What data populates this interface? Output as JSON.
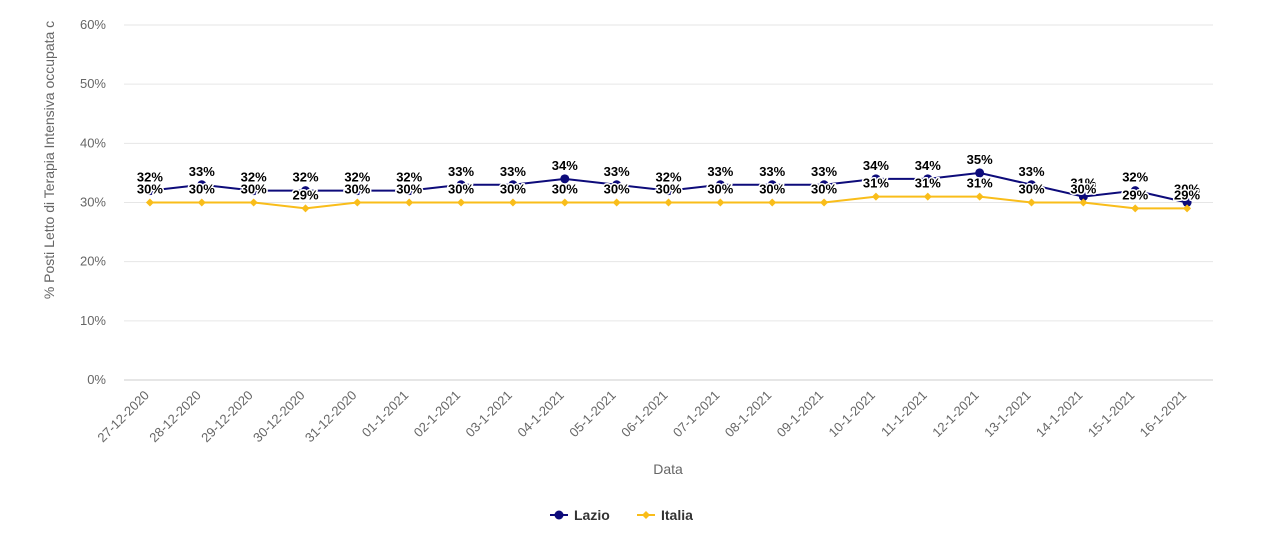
{
  "chart_data": {
    "type": "line",
    "xlabel": "Data",
    "ylabel": "% Posti Letto di Terapia Intensiva occupata c",
    "ylim": [
      0,
      60
    ],
    "yticks": [
      "0%",
      "10%",
      "20%",
      "30%",
      "40%",
      "50%",
      "60%"
    ],
    "ytick_values": [
      0,
      10,
      20,
      30,
      40,
      50,
      60
    ],
    "grid": true,
    "legend_position": "bottom-center",
    "categories": [
      "27-12-2020",
      "28-12-2020",
      "29-12-2020",
      "30-12-2020",
      "31-12-2020",
      "01-1-2021",
      "02-1-2021",
      "03-1-2021",
      "04-1-2021",
      "05-1-2021",
      "06-1-2021",
      "07-1-2021",
      "08-1-2021",
      "09-1-2021",
      "10-1-2021",
      "11-1-2021",
      "12-1-2021",
      "13-1-2021",
      "14-1-2021",
      "15-1-2021",
      "16-1-2021"
    ],
    "series": [
      {
        "name": "Lazio",
        "color": "#0d0b7a",
        "marker": "circle",
        "values": [
          32,
          33,
          32,
          32,
          32,
          32,
          33,
          33,
          34,
          33,
          32,
          33,
          33,
          33,
          34,
          34,
          35,
          33,
          31,
          32,
          30
        ],
        "labels": [
          "32%",
          "33%",
          "32%",
          "32%",
          "32%",
          "32%",
          "33%",
          "33%",
          "34%",
          "33%",
          "32%",
          "33%",
          "33%",
          "33%",
          "34%",
          "34%",
          "35%",
          "33%",
          "31%",
          "32%",
          "30%"
        ]
      },
      {
        "name": "Italia",
        "color": "#f9bd1a",
        "marker": "diamond",
        "values": [
          30,
          30,
          30,
          29,
          30,
          30,
          30,
          30,
          30,
          30,
          30,
          30,
          30,
          30,
          31,
          31,
          31,
          30,
          30,
          29,
          29
        ],
        "labels": [
          "30%",
          "30%",
          "30%",
          "29%",
          "30%",
          "30%",
          "30%",
          "30%",
          "30%",
          "30%",
          "30%",
          "30%",
          "30%",
          "30%",
          "31%",
          "31%",
          "31%",
          "30%",
          "30%",
          "29%",
          "29%"
        ]
      }
    ]
  }
}
